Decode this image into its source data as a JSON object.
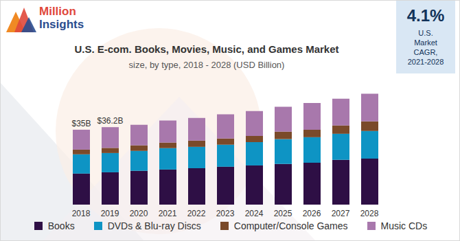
{
  "chart_data": {
    "type": "bar",
    "stacked": true,
    "title": "U.S. E-com. Books, Movies, Music, and Games Market",
    "subtitle": "size, by type, 2018 - 2028 (USD Billion)",
    "categories": [
      "2018",
      "2019",
      "2020",
      "2021",
      "2022",
      "2023",
      "2024",
      "2025",
      "2026",
      "2027",
      "2028"
    ],
    "series": [
      {
        "name": "Books",
        "color": "#2e0f45",
        "values": [
          14.5,
          15.1,
          15.8,
          16.4,
          17.0,
          17.7,
          18.3,
          19.0,
          19.6,
          20.9,
          21.5
        ]
      },
      {
        "name": "DVDs & Blu-ray Discs",
        "color": "#0e94c4",
        "values": [
          9.0,
          9.0,
          9.3,
          10.0,
          10.0,
          10.3,
          10.9,
          11.6,
          11.9,
          12.2,
          12.9
        ]
      },
      {
        "name": "Computer/Console Games",
        "color": "#7a4a2a",
        "values": [
          2.2,
          2.4,
          2.6,
          2.6,
          2.9,
          2.9,
          2.9,
          3.5,
          3.5,
          3.9,
          4.5
        ]
      },
      {
        "name": "Music CDs",
        "color": "#a878ac",
        "values": [
          9.3,
          9.7,
          9.6,
          10.3,
          10.6,
          11.3,
          11.6,
          11.6,
          12.5,
          12.5,
          12.9
        ]
      }
    ],
    "ylim": [
      0,
      60
    ],
    "tick_labels": "x",
    "legend": "bottom",
    "annotations": [
      {
        "category": "2018",
        "text": "$35B"
      },
      {
        "category": "2019",
        "text": "$36.2B"
      }
    ],
    "logo": [
      "Million",
      "Insights"
    ],
    "cagr": {
      "value": "4.1%",
      "label": [
        "U.S.",
        "Market",
        "CAGR,",
        "2021-2028"
      ]
    }
  }
}
